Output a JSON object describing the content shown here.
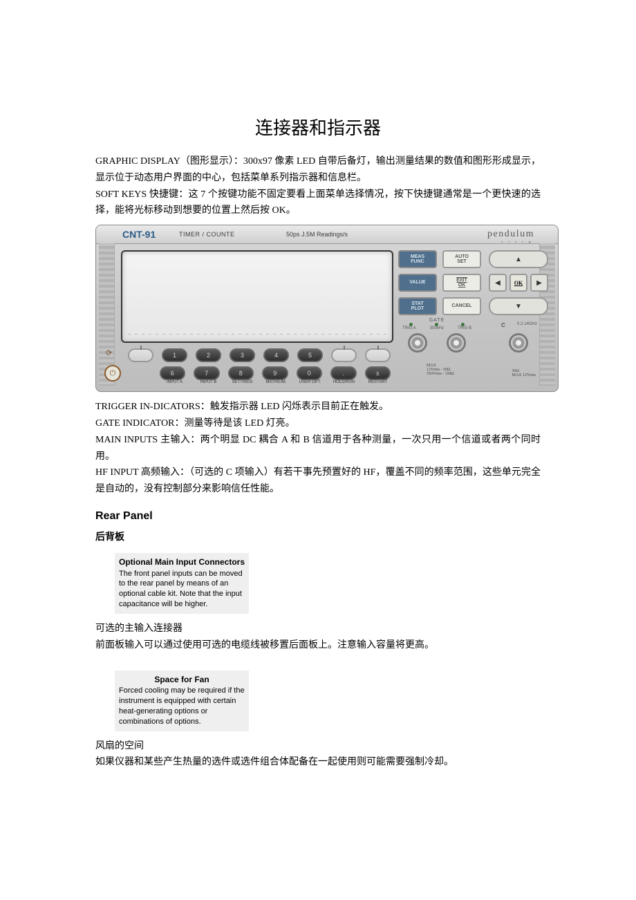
{
  "title": "连接器和指示器",
  "intro1": "GRAPHIC DISPLAY（图形显示）：300x97 像素 LED 自带后备灯，输出测量结果的数值和图形形成显示，显示位于动态用户界面的中心，包括菜单系列指示器和信息栏。",
  "intro2": "SOFT KEYS 快捷键：这 7 个按键功能不固定要看上面菜单选择情况，按下快捷键通常是一个更快速的选择，能将光标移动到想要的位置上然后按 OK。",
  "panel": {
    "model": "CNT-91",
    "subtitle": "TIMER / COUNTE",
    "readings": "50ps  J.5M Readings/s",
    "brand": "pendulum",
    "keys": {
      "meas": "MEAS\nFUNC",
      "auto": "AUTO\nSET",
      "value": "VALUE",
      "exit": "EXIT\nOK",
      "stat": "STAT\nPLOT",
      "cancel": "CANCEL",
      "ok": "OK"
    },
    "gate": {
      "title": "GATE",
      "trigA": "TRIG A",
      "mid": "300kHz",
      "trigB": "TRIG B",
      "max1": "MAX\n12Vrms - 50Ω\n350Vrms - 1MΩ"
    },
    "c": {
      "label": "C",
      "range": "0.2-14GHz",
      "max": "50Ω\nMAX 12Vrms"
    },
    "numrow1": [
      "1",
      "2",
      "3",
      "4",
      "5"
    ],
    "numrow2": [
      "6",
      "7",
      "8",
      "9",
      "0",
      ".",
      "±"
    ],
    "labels": [
      "INPUT A",
      "INPUT B",
      "SETTINGS",
      "MATH/LIM.",
      "USER OPT.",
      "HOLD/RUN",
      "RESTART"
    ],
    "arrows": {
      "up": "▲",
      "down": "▼",
      "left": "◀",
      "right": "▶"
    }
  },
  "para3": "TRIGGER IN-DICATORS：触发指示器 LED 闪烁表示目前正在触发。",
  "para4": "GATE INDICATOR：测量等待是该 LED 灯亮。",
  "para5": "MAIN INPUTS 主输入：两个明显 DC 耦合 A 和 B 信道用于各种测量，一次只用一个信道或者两个同时用。",
  "para6": "HF INPUT 高频输入：（可选的 C 项输入）有若干事先预置好的 HF，覆盖不同的频率范围，这些单元完全是自动的，没有控制部分来影响信任性能。",
  "rear": {
    "heading_en": "Rear Panel",
    "heading_cn": "后背板",
    "callout1_title": "Optional Main Input Connectors",
    "callout1_body": "The front panel inputs can be moved to the rear panel by means of an optional cable kit. Note that the input capacitance will be higher.",
    "p1": "可选的主输入连接器",
    "p2": "前面板输入可以通过使用可选的电缆线被移置后面板上。注意输入容量将更高。",
    "callout2_title": "Space for Fan",
    "callout2_body": "Forced cooling may be required if the instrument is equipped with certain heat-generating options or combinations of options.",
    "p3": "风扇的空间",
    "p4": "如果仪器和某些产生热量的选件或选件组合体配备在一起使用则可能需要强制冷却。"
  }
}
